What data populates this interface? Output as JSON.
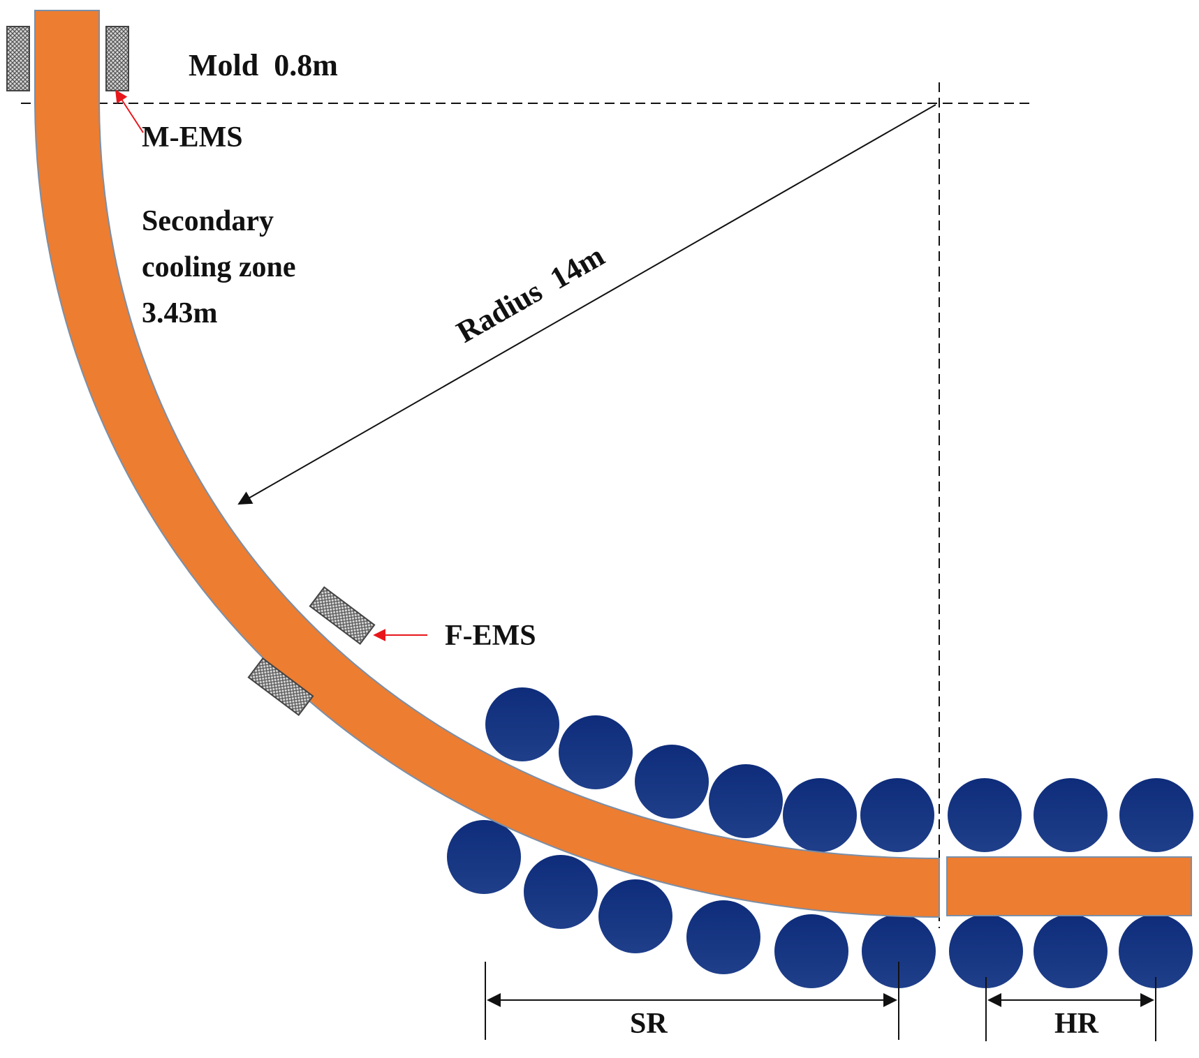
{
  "labels": {
    "mold": "Mold  0.8m",
    "m_ems": "M-EMS",
    "secondary_line1": "Secondary",
    "secondary_line2": "cooling zone",
    "secondary_line3": "3.43m",
    "radius": "Radius  14m",
    "f_ems": "F-EMS",
    "sr": "SR",
    "hr": "HR"
  },
  "colors": {
    "strand": "#ED7D31",
    "strand_edge": "#7A8FA8",
    "roll_top": "#0E2C7A",
    "roll_bottom": "#1F3F8A",
    "arrow_red": "#E8161B",
    "line": "#111111",
    "stirrer_fill": "#9A9A9A"
  },
  "icons": {
    "stirrer": "hatched-coil-block-icon",
    "roll": "roll-circle-icon"
  }
}
